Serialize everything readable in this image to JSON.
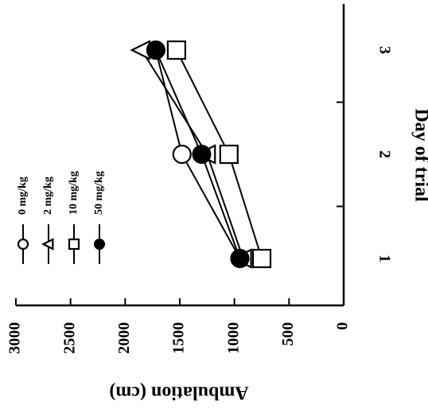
{
  "chart_data": {
    "type": "line",
    "orientation": "rotated-90-clockwise",
    "xlabel": "Day of trial",
    "ylabel": "Ambulation (cm)",
    "x_ticks": [
      "1",
      "2",
      "3"
    ],
    "y_ticks": [
      "0",
      "500",
      "1000",
      "1500",
      "2000",
      "2500",
      "3000"
    ],
    "xlim": [
      0.5,
      3.3
    ],
    "ylim": [
      0,
      3000
    ],
    "grid": false,
    "legend_position": "top-left",
    "series": [
      {
        "name": "0 mg/kg",
        "marker": "circle-open",
        "x": [
          1,
          2,
          3
        ],
        "y": [
          950,
          1480,
          1720
        ]
      },
      {
        "name": "2 mg/kg",
        "marker": "triangle-open",
        "x": [
          1,
          2,
          3
        ],
        "y": [
          920,
          1250,
          1850
        ]
      },
      {
        "name": "10 mg/kg",
        "marker": "square-open",
        "x": [
          1,
          2,
          3
        ],
        "y": [
          750,
          1050,
          1530
        ]
      },
      {
        "name": "50 mg/kg",
        "marker": "circle-filled",
        "x": [
          1,
          2,
          3
        ],
        "y": [
          950,
          1300,
          1720
        ]
      }
    ]
  }
}
